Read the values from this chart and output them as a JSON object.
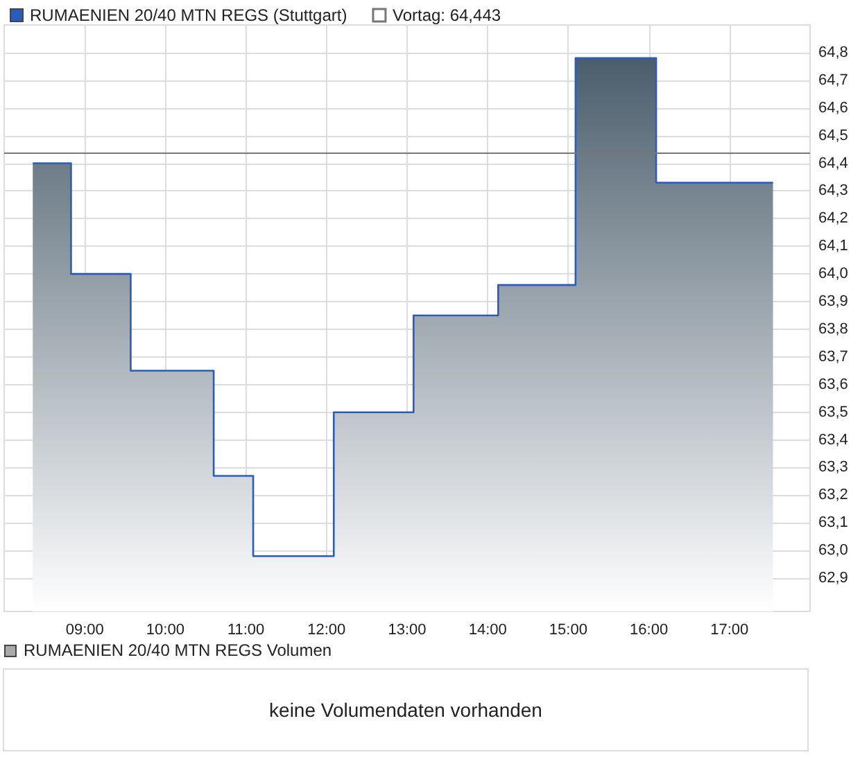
{
  "chart_data": [
    {
      "type": "area",
      "x": [
        8.355,
        8.83,
        8.83,
        9.57,
        9.57,
        10.6,
        10.6,
        11.09,
        11.09,
        12.09,
        12.09,
        13.08,
        13.08,
        14.13,
        14.13,
        15.09,
        15.09,
        16.09,
        16.09,
        17.54
      ],
      "series": [
        {
          "name": "RUMAENIEN 20/40 MTN REGS (Stuttgart)",
          "color": "#2a5cbf",
          "values": [
            64.4,
            64.4,
            64.0,
            64.0,
            63.65,
            63.65,
            63.27,
            63.27,
            62.98,
            62.98,
            63.5,
            63.5,
            63.85,
            63.85,
            63.96,
            63.96,
            64.78,
            64.78,
            64.33,
            64.33
          ]
        }
      ],
      "xlim": [
        8,
        18
      ],
      "xticks": [
        {
          "value": 9,
          "label": "09:00"
        },
        {
          "value": 10,
          "label": "10:00"
        },
        {
          "value": 11,
          "label": "11:00"
        },
        {
          "value": 12,
          "label": "12:00"
        },
        {
          "value": 13,
          "label": "13:00"
        },
        {
          "value": 14,
          "label": "14:00"
        },
        {
          "value": 15,
          "label": "15:00"
        },
        {
          "value": 16,
          "label": "16:00"
        },
        {
          "value": 17,
          "label": "17:00"
        }
      ],
      "ylim": [
        62.78,
        64.9
      ],
      "yticks": [
        {
          "value": 62.9,
          "label": "62,9"
        },
        {
          "value": 63.0,
          "label": "63,0"
        },
        {
          "value": 63.1,
          "label": "63,1"
        },
        {
          "value": 63.2,
          "label": "63,2"
        },
        {
          "value": 63.3,
          "label": "63,3"
        },
        {
          "value": 63.4,
          "label": "63,4"
        },
        {
          "value": 63.5,
          "label": "63,5"
        },
        {
          "value": 63.6,
          "label": "63,6"
        },
        {
          "value": 63.7,
          "label": "63,7"
        },
        {
          "value": 63.8,
          "label": "63,8"
        },
        {
          "value": 63.9,
          "label": "63,9"
        },
        {
          "value": 64.0,
          "label": "64,0"
        },
        {
          "value": 64.1,
          "label": "64,1"
        },
        {
          "value": 64.2,
          "label": "64,2"
        },
        {
          "value": 64.3,
          "label": "64,3"
        },
        {
          "value": 64.4,
          "label": "64,4"
        },
        {
          "value": 64.5,
          "label": "64,5"
        },
        {
          "value": 64.6,
          "label": "64,6"
        },
        {
          "value": 64.7,
          "label": "64,7"
        },
        {
          "value": 64.8,
          "label": "64,8"
        }
      ],
      "ref_lines": [
        {
          "axis": "y",
          "value": 64.443,
          "label": "Vortag: 64,443",
          "color": "#777777"
        }
      ],
      "grid": true,
      "legend": "top left"
    },
    {
      "type": "other",
      "title": "RUMAENIEN 20/40 MTN REGS Volumen",
      "annotations": [
        "keine Volumendaten vorhanden"
      ]
    }
  ]
}
